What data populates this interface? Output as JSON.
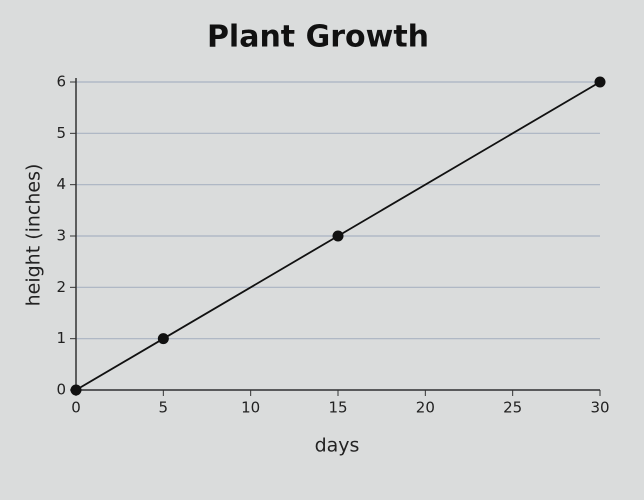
{
  "chart_data": {
    "type": "line",
    "title": "Plant Growth",
    "x_label": "days",
    "y_label": "height (inches)",
    "x": [
      0,
      5,
      15,
      30
    ],
    "values": [
      0,
      1,
      3,
      6
    ],
    "color": "#111111",
    "markers": true,
    "xlim": [
      0,
      30
    ],
    "xticks": [
      0,
      5,
      10,
      15,
      20,
      25,
      30
    ],
    "ylim": [
      0,
      6
    ],
    "yticks": [
      0,
      1,
      2,
      3,
      4,
      5,
      6
    ],
    "grid": true
  }
}
